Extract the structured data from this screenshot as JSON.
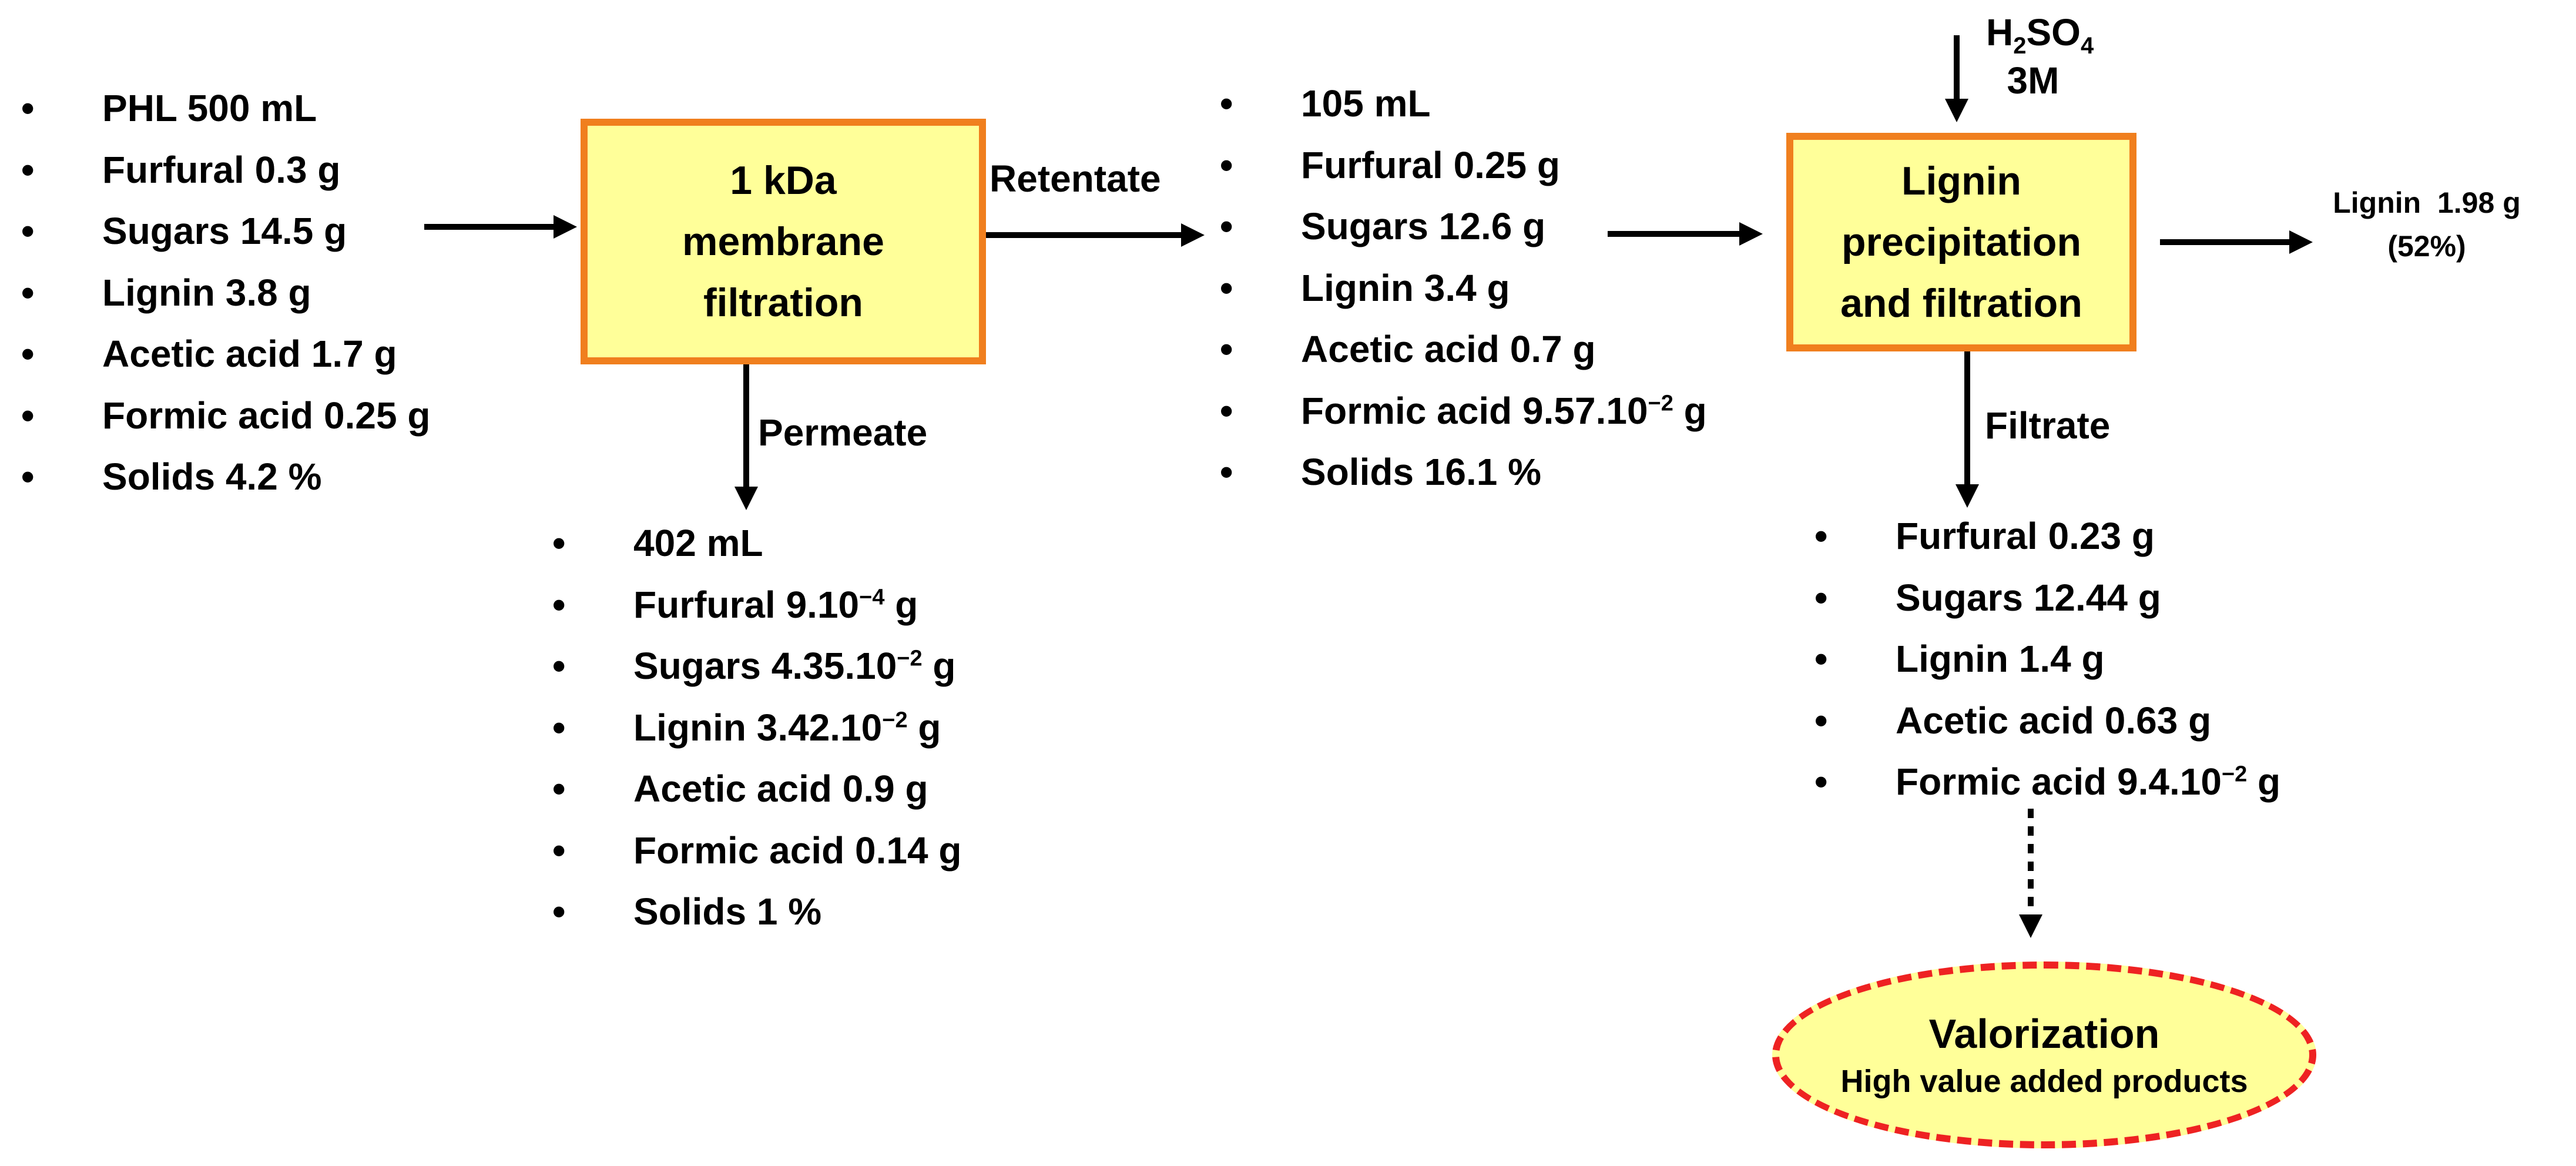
{
  "feed": {
    "items": [
      {
        "text": "PHL 500 mL"
      },
      {
        "text": "Furfural 0.3 g"
      },
      {
        "text": "Sugars 14.5 g"
      },
      {
        "text": "Lignin 3.8 g"
      },
      {
        "text": "Acetic acid 1.7 g"
      },
      {
        "text": "Formic acid 0.25 g"
      },
      {
        "text": "Solids 4.2 %"
      }
    ]
  },
  "membrane_box": {
    "line1": "1 kDa",
    "line2": "membrane",
    "line3": "filtration"
  },
  "labels": {
    "retentate": "Retentate",
    "permeate": "Permeate",
    "filtrate": "Filtrate"
  },
  "permeate": {
    "items": [
      {
        "text": "402 mL"
      },
      {
        "pre": "Furfural 9.10",
        "sup": "−4",
        "post": " g"
      },
      {
        "pre": "Sugars 4.35.10",
        "sup": "−2",
        "post": " g"
      },
      {
        "pre": "Lignin 3.42.10",
        "sup": "−2",
        "post": " g"
      },
      {
        "text": "Acetic acid 0.9 g"
      },
      {
        "text": "Formic acid 0.14 g"
      },
      {
        "text": "Solids 1 %"
      }
    ]
  },
  "retentate": {
    "items": [
      {
        "text": "105 mL"
      },
      {
        "text": "Furfural 0.25 g"
      },
      {
        "text": "Sugars 12.6 g"
      },
      {
        "text": "Lignin 3.4 g"
      },
      {
        "text": "Acetic acid 0.7 g"
      },
      {
        "pre": "Formic acid 9.57.10",
        "sup": "−2",
        "post": " g"
      },
      {
        "text": "Solids 16.1 %"
      }
    ]
  },
  "acid": {
    "h": "H",
    "sub2": "2",
    "so": "SO",
    "sub4": "4",
    "conc": "3M"
  },
  "precip_box": {
    "line1": "Lignin",
    "line2": "precipitation",
    "line3": "and filtration"
  },
  "product": {
    "line1": "Lignin  1.98 g",
    "line2": "(52%)"
  },
  "filtrate": {
    "items": [
      {
        "text": "Furfural 0.23 g"
      },
      {
        "text": "Sugars 12.44 g"
      },
      {
        "text": "Lignin 1.4 g"
      },
      {
        "text": "Acetic acid 0.63 g"
      },
      {
        "pre": "Formic acid 9.4.10",
        "sup": "−2",
        "post": " g"
      }
    ]
  },
  "valorization": {
    "title": "Valorization",
    "subtitle": "High value added products"
  },
  "bullet": "•",
  "colors": {
    "box_fill": "#ffff99",
    "box_border": "#f07f1e",
    "ellipse_border": "#ee2222",
    "text": "#000000"
  }
}
